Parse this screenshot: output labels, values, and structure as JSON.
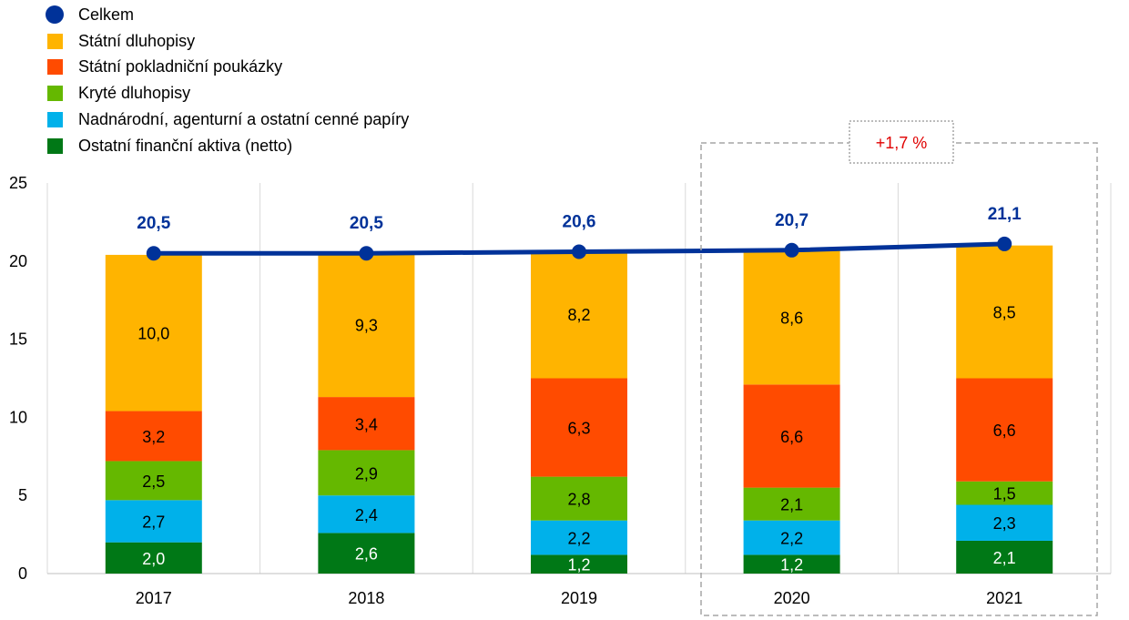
{
  "chart_data": {
    "type": "bar",
    "stacked": true,
    "categories": [
      "2017",
      "2018",
      "2019",
      "2020",
      "2021"
    ],
    "series": [
      {
        "name": "Ostatní finanční aktiva (netto)",
        "color": "#007816",
        "values": [
          2.0,
          2.6,
          1.2,
          1.2,
          2.1
        ],
        "labels": [
          "2,0",
          "2,6",
          "1,2",
          "1,2",
          "2,1"
        ]
      },
      {
        "name": "Nadnárodní, agenturní a ostatní cenné papíry",
        "color": "#00B1EA",
        "values": [
          2.7,
          2.4,
          2.2,
          2.2,
          2.3
        ],
        "labels": [
          "2,7",
          "2,4",
          "2,2",
          "2,2",
          "2,3"
        ]
      },
      {
        "name": "Kryté dluhopisy",
        "color": "#65B800",
        "values": [
          2.5,
          2.9,
          2.8,
          2.1,
          1.5
        ],
        "labels": [
          "2,5",
          "2,9",
          "2,8",
          "2,1",
          "1,5"
        ]
      },
      {
        "name": "Státní pokladniční poukázky",
        "color": "#FF4B00",
        "values": [
          3.2,
          3.4,
          6.3,
          6.6,
          6.6
        ],
        "labels": [
          "3,2",
          "3,4",
          "6,3",
          "6,6",
          "6,6"
        ]
      },
      {
        "name": "Státní dluhopisy",
        "color": "#FFB400",
        "values": [
          10.0,
          9.3,
          8.2,
          8.6,
          8.5
        ],
        "labels": [
          "10,0",
          "9,3",
          "8,2",
          "8,6",
          "8,5"
        ]
      }
    ],
    "line": {
      "name": "Celkem",
      "color": "#003299",
      "values": [
        20.5,
        20.5,
        20.6,
        20.7,
        21.1
      ],
      "labels": [
        "20,5",
        "20,5",
        "20,6",
        "20,7",
        "21,1"
      ]
    },
    "legend_order": [
      "Celkem",
      "Státní dluhopisy",
      "Státní pokladniční poukázky",
      "Kryté dluhopisy",
      "Nadnárodní, agenturní a ostatní cenné papíry",
      "Ostatní finanční aktiva (netto)"
    ],
    "legend_placement": "top-left",
    "ylim": [
      0,
      25
    ],
    "yticks": [
      "0",
      "5",
      "10",
      "15",
      "20",
      "25"
    ],
    "grid": "vertical",
    "annotation": {
      "text": "+1,7 %",
      "color": "#E00000",
      "highlight_categories": [
        "2020",
        "2021"
      ]
    }
  }
}
